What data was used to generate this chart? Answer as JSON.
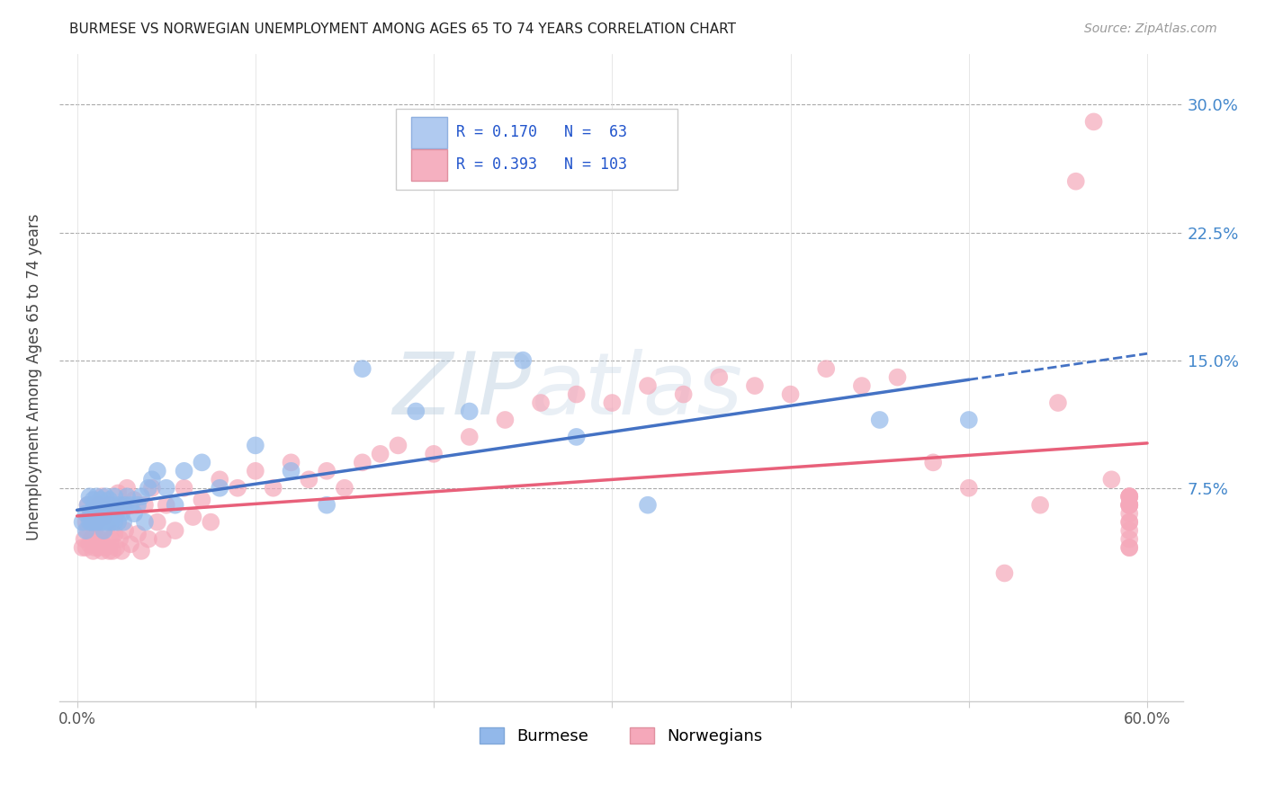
{
  "title": "BURMESE VS NORWEGIAN UNEMPLOYMENT AMONG AGES 65 TO 74 YEARS CORRELATION CHART",
  "source": "Source: ZipAtlas.com",
  "ylabel": "Unemployment Among Ages 65 to 74 years",
  "xlabel_burmese": "Burmese",
  "xlabel_norwegians": "Norwegians",
  "xlim": [
    -0.01,
    0.62
  ],
  "ylim": [
    -0.05,
    0.33
  ],
  "xtick_vals": [
    0.0,
    0.1,
    0.2,
    0.3,
    0.4,
    0.5,
    0.6
  ],
  "xticklabels": [
    "0.0%",
    "",
    "",
    "",
    "",
    "",
    "60.0%"
  ],
  "yticks_right": [
    0.075,
    0.15,
    0.225,
    0.3
  ],
  "ytick_right_labels": [
    "7.5%",
    "15.0%",
    "22.5%",
    "30.0%"
  ],
  "burmese_R": 0.17,
  "burmese_N": 63,
  "norwegian_R": 0.393,
  "norwegian_N": 103,
  "burmese_color": "#92b8ea",
  "norwegian_color": "#f5a8ba",
  "burmese_line_color": "#4472c4",
  "norwegian_line_color": "#e8607a",
  "watermark_zip": "ZIP",
  "watermark_atlas": "atlas",
  "burmese_x": [
    0.003,
    0.005,
    0.005,
    0.006,
    0.007,
    0.007,
    0.008,
    0.008,
    0.009,
    0.009,
    0.01,
    0.01,
    0.01,
    0.011,
    0.011,
    0.012,
    0.012,
    0.013,
    0.013,
    0.014,
    0.014,
    0.015,
    0.015,
    0.016,
    0.016,
    0.017,
    0.018,
    0.018,
    0.019,
    0.02,
    0.021,
    0.021,
    0.022,
    0.023,
    0.024,
    0.025,
    0.026,
    0.027,
    0.028,
    0.03,
    0.032,
    0.034,
    0.036,
    0.038,
    0.04,
    0.042,
    0.045,
    0.05,
    0.055,
    0.06,
    0.07,
    0.08,
    0.1,
    0.12,
    0.14,
    0.16,
    0.19,
    0.22,
    0.25,
    0.28,
    0.32,
    0.45,
    0.5
  ],
  "burmese_y": [
    0.055,
    0.06,
    0.05,
    0.065,
    0.055,
    0.07,
    0.06,
    0.055,
    0.062,
    0.068,
    0.055,
    0.06,
    0.065,
    0.058,
    0.07,
    0.055,
    0.065,
    0.06,
    0.068,
    0.055,
    0.062,
    0.065,
    0.05,
    0.06,
    0.07,
    0.055,
    0.062,
    0.068,
    0.055,
    0.065,
    0.055,
    0.07,
    0.06,
    0.055,
    0.065,
    0.06,
    0.055,
    0.065,
    0.07,
    0.065,
    0.06,
    0.065,
    0.07,
    0.055,
    0.075,
    0.08,
    0.085,
    0.075,
    0.065,
    0.085,
    0.09,
    0.075,
    0.1,
    0.085,
    0.065,
    0.145,
    0.12,
    0.12,
    0.15,
    0.105,
    0.065,
    0.115,
    0.115
  ],
  "norwegian_x": [
    0.003,
    0.004,
    0.005,
    0.005,
    0.006,
    0.006,
    0.007,
    0.007,
    0.008,
    0.008,
    0.009,
    0.009,
    0.01,
    0.01,
    0.01,
    0.011,
    0.011,
    0.012,
    0.012,
    0.013,
    0.013,
    0.014,
    0.014,
    0.015,
    0.015,
    0.016,
    0.017,
    0.018,
    0.018,
    0.019,
    0.02,
    0.02,
    0.021,
    0.022,
    0.023,
    0.024,
    0.025,
    0.026,
    0.027,
    0.028,
    0.03,
    0.032,
    0.034,
    0.036,
    0.038,
    0.04,
    0.042,
    0.045,
    0.048,
    0.05,
    0.055,
    0.06,
    0.065,
    0.07,
    0.075,
    0.08,
    0.09,
    0.1,
    0.11,
    0.12,
    0.13,
    0.14,
    0.15,
    0.16,
    0.17,
    0.18,
    0.2,
    0.22,
    0.24,
    0.26,
    0.28,
    0.3,
    0.32,
    0.34,
    0.36,
    0.38,
    0.4,
    0.42,
    0.44,
    0.46,
    0.48,
    0.5,
    0.52,
    0.54,
    0.55,
    0.56,
    0.57,
    0.58,
    0.59,
    0.59,
    0.59,
    0.59,
    0.59,
    0.59,
    0.59,
    0.59,
    0.59,
    0.59,
    0.59,
    0.59,
    0.59,
    0.59,
    0.59
  ],
  "norwegian_y": [
    0.04,
    0.045,
    0.04,
    0.055,
    0.05,
    0.065,
    0.042,
    0.058,
    0.045,
    0.06,
    0.038,
    0.055,
    0.04,
    0.05,
    0.062,
    0.045,
    0.055,
    0.04,
    0.065,
    0.045,
    0.06,
    0.038,
    0.07,
    0.042,
    0.058,
    0.04,
    0.052,
    0.038,
    0.065,
    0.045,
    0.038,
    0.062,
    0.048,
    0.04,
    0.072,
    0.045,
    0.038,
    0.065,
    0.05,
    0.075,
    0.042,
    0.068,
    0.048,
    0.038,
    0.065,
    0.045,
    0.075,
    0.055,
    0.045,
    0.065,
    0.05,
    0.075,
    0.058,
    0.068,
    0.055,
    0.08,
    0.075,
    0.085,
    0.075,
    0.09,
    0.08,
    0.085,
    0.075,
    0.09,
    0.095,
    0.1,
    0.095,
    0.105,
    0.115,
    0.125,
    0.13,
    0.125,
    0.135,
    0.13,
    0.14,
    0.135,
    0.13,
    0.145,
    0.135,
    0.14,
    0.09,
    0.075,
    0.025,
    0.065,
    0.125,
    0.255,
    0.29,
    0.08,
    0.04,
    0.055,
    0.065,
    0.07,
    0.045,
    0.07,
    0.04,
    0.065,
    0.06,
    0.07,
    0.055,
    0.065,
    0.05,
    0.07,
    0.065
  ]
}
